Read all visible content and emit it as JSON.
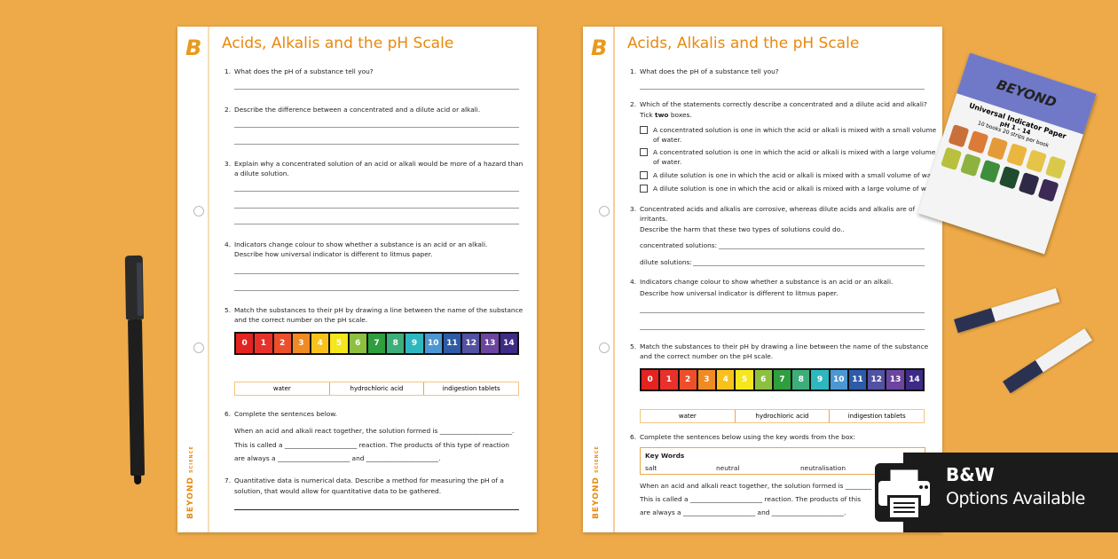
{
  "colors": {
    "background": "#EEAA48",
    "accent": "#E8890C",
    "badge": "#1b1b1b"
  },
  "brand": {
    "name": "BEYOND",
    "sub": "SCIENCE",
    "logo_letter": "B"
  },
  "ph_scale": {
    "labels": [
      "0",
      "1",
      "2",
      "3",
      "4",
      "5",
      "6",
      "7",
      "8",
      "9",
      "10",
      "11",
      "12",
      "13",
      "14"
    ],
    "colors": [
      "#E32420",
      "#E8312A",
      "#EE4F2B",
      "#F08A22",
      "#F9C21A",
      "#F5E71B",
      "#8DC03F",
      "#2E9E3E",
      "#3DAE7A",
      "#2DB8BF",
      "#4B97D3",
      "#2D5BA8",
      "#5351A2",
      "#6B45A0",
      "#3E2B86"
    ]
  },
  "substances": [
    "water",
    "hydrochloric acid",
    "indigestion tablets"
  ],
  "sheet1": {
    "title": "Acids, Alkalis and the pH Scale",
    "q1": "What does the pH of a substance tell you?",
    "q2": "Describe the difference between a concentrated and a dilute acid or alkali.",
    "q3a": "Explain why a concentrated solution of an acid or alkali would be more of a hazard than",
    "q3b": "a dilute solution.",
    "q4a": "Indicators change colour to show whether a substance is an acid or an alkali.",
    "q4b": "Describe how universal indicator is different to litmus paper.",
    "q5a": "Match the substances to their pH by drawing a line between the name of the substance",
    "q5b": "and the correct number on the pH scale.",
    "q6": "Complete the sentences below.",
    "s1": "When an acid and alkali react together, the solution formed is ______________________.",
    "s2": "This is called a ______________________ reaction. The products of this type of reaction",
    "s3": "are always a ______________________ and ______________________.",
    "q7a": "Quantitative data is numerical data. Describe a method for measuring the pH of a",
    "q7b": "solution, that would allow for quantitative data to be gathered."
  },
  "sheet2": {
    "title": "Acids, Alkalis and the pH Scale",
    "q1": "What does the pH of a substance tell you?",
    "q2a": "Which of the statements correctly describe a concentrated and a dilute acid and alkali?",
    "q2b_pre": "Tick ",
    "q2b_bold": "two",
    "q2b_post": " boxes.",
    "opt1a": "A concentrated solution is one in which the acid or alkali is mixed with a small volume",
    "opt1b": "of water.",
    "opt2a": "A concentrated solution is one in which the acid or alkali is mixed with a large volume",
    "opt2b": "of water.",
    "opt3": "A dilute solution is one in which the acid or alkali is mixed with a small volume of water.",
    "opt4": "A dilute solution is one in which the acid or alkali is mixed with a large volume of water",
    "q3a": "Concentrated acids and alkalis are corrosive, whereas dilute acids and alkalis are of",
    "q3b": "irritants.",
    "q3c": "Describe the harm that these two types of solutions could do..",
    "conc": "concentrated solutions:",
    "dil": "dilute solutions:",
    "q4a": "Indicators change colour to show whether a substance is an acid or an alkali.",
    "q4b": "Describe how universal indicator is different to litmus paper.",
    "q5a": "Match the substances to their pH by drawing a line between the name of the substance",
    "q5b": "and the correct number on the pH scale.",
    "q6": "Complete the sentences below using the key words from the box:",
    "kw_title": "Key Words",
    "kw": [
      "salt",
      "neutral",
      "neutralisation"
    ],
    "s1": "When an acid and alkali react together, the solution formed is ________",
    "s2": "This is called a ______________________ reaction. The products of this",
    "s3": "are always a ______________________ and ______________________."
  },
  "indicator_card": {
    "brand": "BEYOND",
    "title": "Universal Indicator Paper",
    "range": "pH 1 - 14",
    "pack": "10 books 20 strips per book",
    "swatches": [
      "#C9703A",
      "#DC7A38",
      "#E59A3A",
      "#EAB640",
      "#E6C448",
      "#D9C94A",
      "#B9C03E",
      "#8DB33E",
      "#3F8E3C",
      "#1F4B2E",
      "#2E2A45",
      "#3C2A55"
    ]
  },
  "badge": {
    "line1": "B&W",
    "line2": "Options Available",
    "icon": "printer-icon"
  }
}
